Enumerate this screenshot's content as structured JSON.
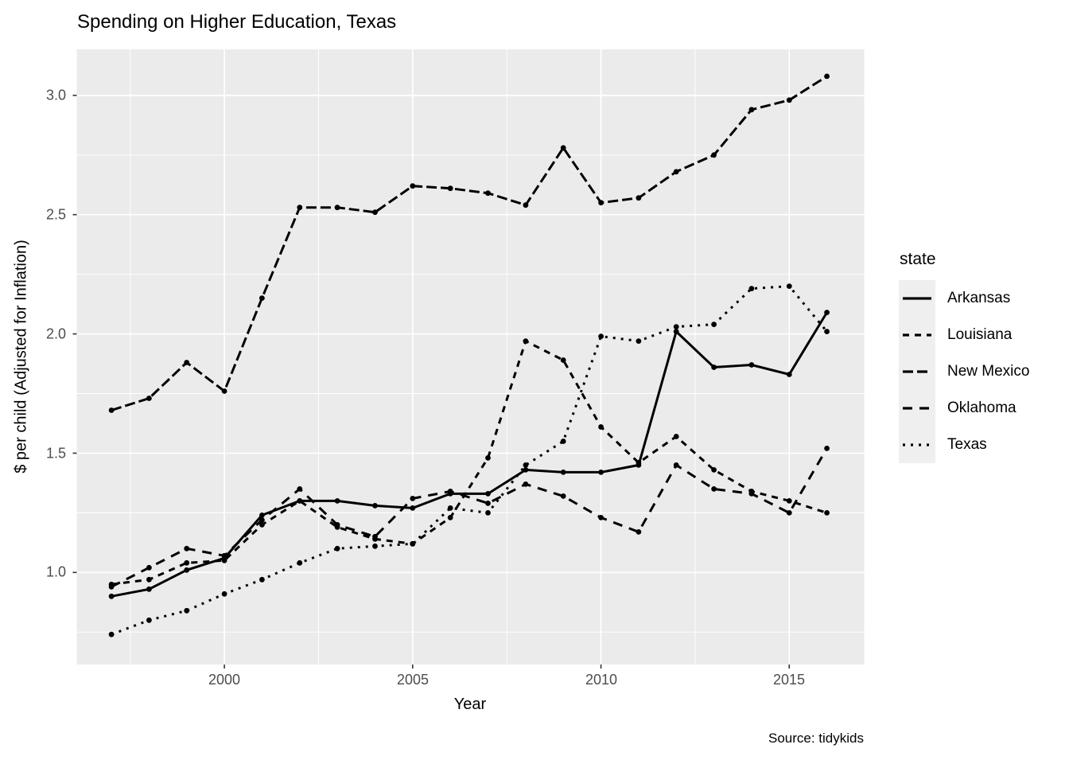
{
  "title": "Spending on Higher Education, Texas",
  "caption": "Source: tidykids",
  "legend": {
    "title": "state",
    "entries": [
      "Arkansas",
      "Louisiana",
      "New Mexico",
      "Oklahoma",
      "Texas"
    ]
  },
  "axes": {
    "x_label": "Year",
    "y_label": "$ per child (Adjusted for Inflation)",
    "x_ticks": [
      {
        "label": "2000",
        "value": 2000
      },
      {
        "label": "2005",
        "value": 2005
      },
      {
        "label": "2010",
        "value": 2010
      },
      {
        "label": "2015",
        "value": 2015
      }
    ],
    "y_ticks": [
      {
        "label": "1.0",
        "value": 1.0
      },
      {
        "label": "1.5",
        "value": 1.5
      },
      {
        "label": "2.0",
        "value": 2.0
      },
      {
        "label": "2.5",
        "value": 2.5
      },
      {
        "label": "3.0",
        "value": 3.0
      }
    ],
    "x_minor": [
      1997.5,
      2002.5,
      2007.5,
      2012.5
    ],
    "y_minor": [
      0.75,
      1.25,
      1.75,
      2.25,
      2.75
    ]
  },
  "style": {
    "panel_bg": "#ebebeb",
    "grid_color": "#ffffff",
    "line_color": "#000000",
    "tick_mark_color": "#333333",
    "tick_label_color": "#4d4d4d",
    "legend_key_bg": "#efefef"
  },
  "chart_data": {
    "type": "line",
    "title": "Spending on Higher Education, Texas",
    "xlabel": "Year",
    "ylabel": "$ per child (Adjusted for Inflation)",
    "caption": "Source: tidykids",
    "legend_title": "state",
    "legend_position": "right",
    "grid": true,
    "marker": "point",
    "xlim": [
      1996.08,
      2016.99
    ],
    "ylim": [
      0.614,
      3.193
    ],
    "x": [
      1997,
      1998,
      1999,
      2000,
      2001,
      2002,
      2003,
      2004,
      2005,
      2006,
      2007,
      2008,
      2009,
      2010,
      2011,
      2012,
      2013,
      2014,
      2015,
      2016
    ],
    "series": [
      {
        "name": "Arkansas",
        "linetype": "solid",
        "dash": "",
        "values": [
          0.9,
          0.93,
          1.01,
          1.06,
          1.24,
          1.3,
          1.3,
          1.28,
          1.27,
          1.33,
          1.33,
          1.43,
          1.42,
          1.42,
          1.45,
          2.01,
          1.86,
          1.87,
          1.83,
          2.09
        ]
      },
      {
        "name": "Louisiana",
        "linetype": "dashed",
        "dash": "8,7",
        "values": [
          0.95,
          0.97,
          1.04,
          1.05,
          1.2,
          1.3,
          1.19,
          1.14,
          1.12,
          1.23,
          1.48,
          1.97,
          1.89,
          1.61,
          1.46,
          1.57,
          1.43,
          1.34,
          1.3,
          1.25
        ]
      },
      {
        "name": "New Mexico",
        "linetype": "longdash-short-gap",
        "dash": "13,5",
        "values": [
          1.68,
          1.73,
          1.88,
          1.76,
          2.15,
          2.53,
          2.53,
          2.51,
          2.62,
          2.61,
          2.59,
          2.54,
          2.78,
          2.55,
          2.57,
          2.68,
          2.75,
          2.94,
          2.98,
          3.08
        ]
      },
      {
        "name": "Oklahoma",
        "linetype": "longdash",
        "dash": "12,9",
        "values": [
          0.94,
          1.02,
          1.1,
          1.07,
          1.22,
          1.35,
          1.2,
          1.15,
          1.31,
          1.34,
          1.29,
          1.37,
          1.32,
          1.23,
          1.17,
          1.45,
          1.35,
          1.33,
          1.25,
          1.52
        ]
      },
      {
        "name": "Texas",
        "linetype": "dotted",
        "dash": "3,7",
        "values": [
          0.74,
          0.8,
          0.84,
          0.91,
          0.97,
          1.04,
          1.1,
          1.11,
          1.12,
          1.27,
          1.25,
          1.45,
          1.55,
          1.99,
          1.97,
          2.03,
          2.04,
          2.19,
          2.2,
          2.01
        ]
      }
    ]
  }
}
